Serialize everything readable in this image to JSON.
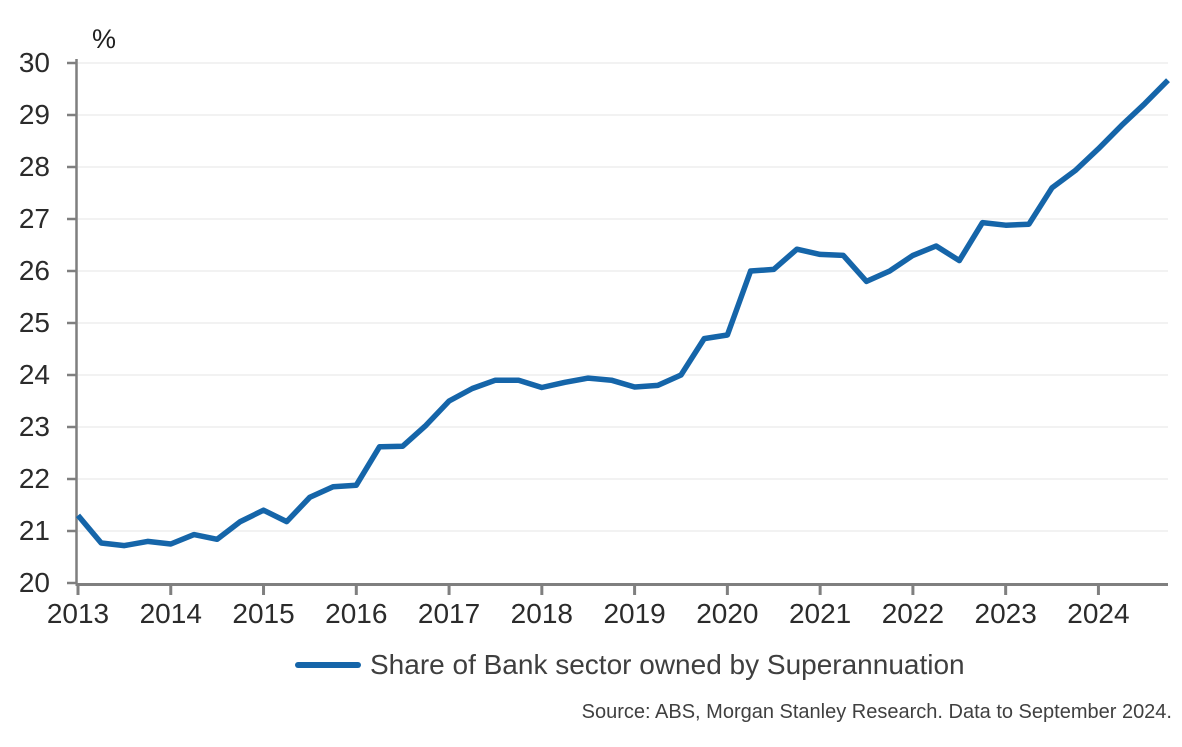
{
  "header": {
    "y_axis_unit": "%"
  },
  "legend": {
    "label": "Share of Bank sector owned by Superannuation"
  },
  "footer": {
    "source": "Source: ABS, Morgan Stanley Research. Data to September 2024."
  },
  "colors": {
    "line": "#1565a9",
    "axis": "#7f7f7f",
    "tick": "#7f7f7f",
    "grid": "#ededed",
    "axis_text": "#2b2b2b",
    "legend_text": "#3f3f3f",
    "source_text": "#404040"
  },
  "chart_data": {
    "type": "line",
    "title": "",
    "ylabel": "%",
    "xlabel": "",
    "ylim": [
      20,
      30
    ],
    "ytick_step": 1,
    "grid": "horizontal",
    "legend_position": "bottom",
    "frequency": "quarterly",
    "data_end": "September 2024",
    "y_tick_labels": [
      "20",
      "21",
      "22",
      "23",
      "24",
      "25",
      "26",
      "27",
      "28",
      "29",
      "30"
    ],
    "x_tick_labels": [
      "2013",
      "2014",
      "2015",
      "2016",
      "2017",
      "2018",
      "2019",
      "2020",
      "2021",
      "2022",
      "2023",
      "2024"
    ],
    "series": [
      {
        "name": "Share of Bank sector owned by Superannuation",
        "values": [
          21.3,
          20.77,
          20.72,
          20.8,
          20.75,
          20.93,
          20.84,
          21.18,
          21.4,
          21.18,
          21.65,
          21.85,
          21.88,
          22.62,
          22.63,
          23.03,
          23.5,
          23.74,
          23.9,
          23.9,
          23.76,
          23.86,
          23.94,
          23.9,
          23.77,
          23.8,
          24.0,
          24.7,
          24.77,
          26.0,
          26.03,
          26.42,
          26.32,
          26.3,
          25.8,
          26.0,
          26.3,
          26.48,
          26.2,
          26.93,
          26.88,
          26.9,
          27.6,
          27.93,
          28.35,
          28.8,
          29.22,
          29.67
        ]
      }
    ]
  }
}
